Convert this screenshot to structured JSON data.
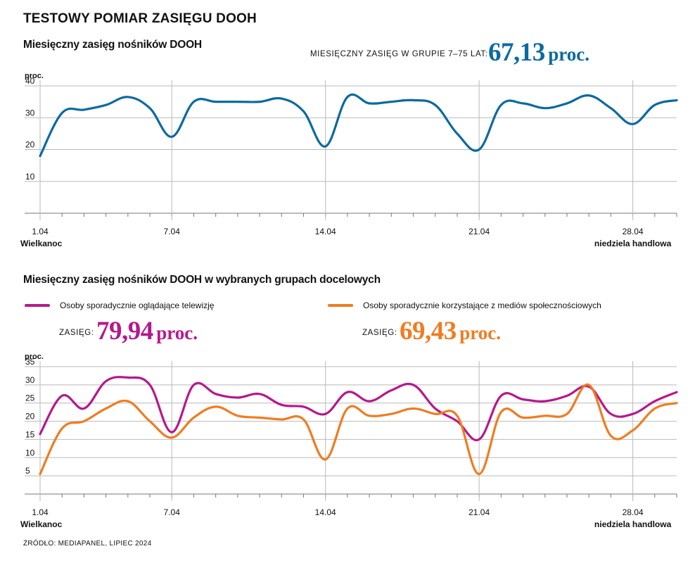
{
  "header": {
    "title": "TESTOWY POMIAR ZASIĘGU DOOH"
  },
  "chart1": {
    "subtitle": "Miesięczny zasięg nośników DOOH",
    "reach_label": "MIESIĘCZNY ZASIĘG W GRUPIE 7–75 LAT:",
    "reach_value": "67,13",
    "reach_unit": "proc.",
    "unit_label": "proc."
  },
  "chart2": {
    "subtitle": "Miesięczny zasięg nośników DOOH w wybranych grupach docelowych",
    "legend_tv": "Osoby sporadycznie oglądające telewizję",
    "legend_social": "Osoby sporadycznie korzystające z mediów społecznościowych",
    "reach_label_tv": "ZASIĘG:",
    "reach_value_tv": "79,94",
    "reach_unit_tv": "proc.",
    "reach_label_social": "ZASIĘG:",
    "reach_value_social": "69,43",
    "reach_unit_social": "proc.",
    "unit_label": "proc."
  },
  "source": "ŹRÓDŁO: MEDIAPANEL, LIPIEC 2024",
  "colors": {
    "blue": "#0b6aa0",
    "magenta": "#b5198c",
    "orange": "#f07c21",
    "grid": "#b9b9b9"
  },
  "chart_data": [
    {
      "type": "line",
      "title": "Miesięczny zasięg nośników DOOH",
      "ylabel": "proc.",
      "xlabel": "",
      "ylim": [
        0,
        40
      ],
      "yticks": [
        10,
        20,
        30,
        40
      ],
      "xlim": [
        1,
        30
      ],
      "xticks": [
        {
          "day": 1,
          "label": "1.04",
          "sublabel": "Wielkanoc"
        },
        {
          "day": 7,
          "label": "7.04",
          "sublabel": ""
        },
        {
          "day": 14,
          "label": "14.04",
          "sublabel": ""
        },
        {
          "day": 21,
          "label": "21.04",
          "sublabel": ""
        },
        {
          "day": 28,
          "label": "28.04",
          "sublabel": "niedziela handlowa"
        }
      ],
      "x": [
        1,
        2,
        3,
        4,
        5,
        6,
        7,
        8,
        9,
        10,
        11,
        12,
        13,
        14,
        15,
        16,
        17,
        18,
        19,
        20,
        21,
        22,
        23,
        24,
        25,
        26,
        27,
        28,
        29,
        30
      ],
      "series": [
        {
          "name": "DOOH",
          "color": "#0b6aa0",
          "values": [
            18,
            31.5,
            32.5,
            34,
            36.5,
            33,
            24,
            35,
            35,
            35,
            35,
            36,
            32,
            21,
            36.5,
            34.5,
            35,
            35.5,
            34,
            25,
            20,
            34,
            34.5,
            33,
            34.5,
            37,
            33,
            28,
            34,
            35.5
          ]
        }
      ]
    },
    {
      "type": "line",
      "title": "Miesięczny zasięg nośników DOOH w wybranych grupach docelowych",
      "ylabel": "proc.",
      "xlabel": "",
      "ylim": [
        0,
        35
      ],
      "yticks": [
        5,
        10,
        15,
        20,
        25,
        30,
        35
      ],
      "xlim": [
        1,
        30
      ],
      "xticks": [
        {
          "day": 1,
          "label": "1.04",
          "sublabel": "Wielkanoc"
        },
        {
          "day": 7,
          "label": "7.04",
          "sublabel": ""
        },
        {
          "day": 14,
          "label": "14.04",
          "sublabel": ""
        },
        {
          "day": 21,
          "label": "21.04",
          "sublabel": ""
        },
        {
          "day": 28,
          "label": "28.04",
          "sublabel": "niedziela handlowa"
        }
      ],
      "x": [
        1,
        2,
        3,
        4,
        5,
        6,
        7,
        8,
        9,
        10,
        11,
        12,
        13,
        14,
        15,
        16,
        17,
        18,
        19,
        20,
        21,
        22,
        23,
        24,
        25,
        26,
        27,
        28,
        29,
        30
      ],
      "series": [
        {
          "name": "Osoby sporadycznie oglądające telewizję",
          "color": "#b5198c",
          "values": [
            16.5,
            27,
            23.5,
            31,
            32,
            30,
            17,
            30,
            27.5,
            26.5,
            27.5,
            24.5,
            24,
            22,
            28,
            25.5,
            28.5,
            30,
            23.5,
            20,
            15,
            27,
            26,
            25.5,
            27,
            29.5,
            22,
            22,
            25.5,
            28
          ]
        },
        {
          "name": "Osoby sporadycznie korzystające z mediów społecznościowych",
          "color": "#f07c21",
          "values": [
            5.5,
            18,
            20,
            23.5,
            25.5,
            20,
            15.5,
            21,
            24,
            21.5,
            21,
            20.5,
            20.5,
            9.5,
            23.5,
            21.5,
            22,
            23.5,
            22,
            21.5,
            5.5,
            22.5,
            21,
            21.5,
            22,
            30,
            16,
            17.5,
            23.5,
            25
          ]
        }
      ]
    }
  ]
}
